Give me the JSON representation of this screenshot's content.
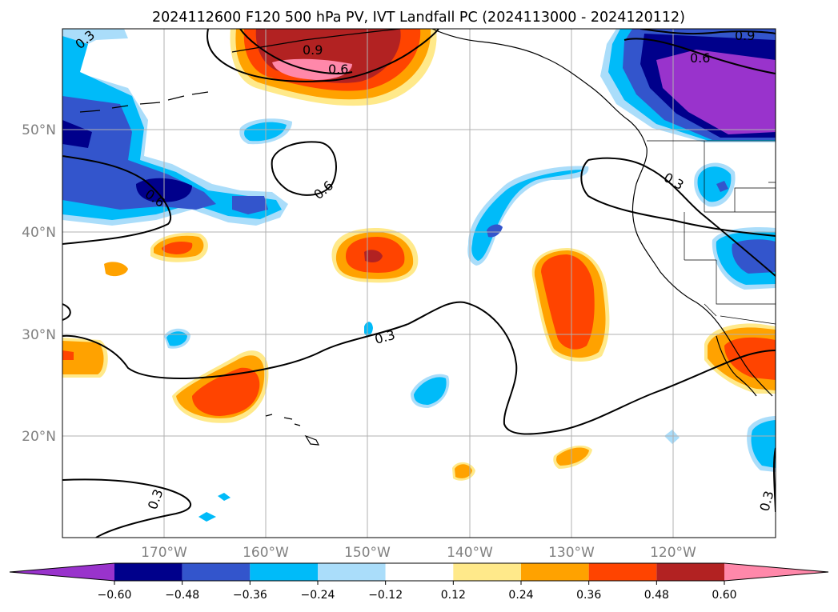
{
  "title": "2024112600 F120 500 hPa PV, IVT Landfall PC (2024113000 - 2024120112)",
  "map": {
    "lat_ticks": [
      "50°N",
      "40°N",
      "30°N",
      "20°N"
    ],
    "lon_ticks": [
      "170°W",
      "160°W",
      "150°W",
      "140°W",
      "130°W",
      "120°W"
    ],
    "grid": true
  },
  "contour_labels": [
    "0.3",
    "0.9",
    "0.6",
    "0.6",
    "0.9",
    "0.6",
    "0.3",
    "0.6",
    "0.3",
    "0.3",
    "0.3"
  ],
  "colorbar": {
    "levels": [
      "−0.60",
      "−0.48",
      "−0.36",
      "−0.24",
      "−0.12",
      "0.12",
      "0.24",
      "0.36",
      "0.48",
      "0.60"
    ],
    "colors": [
      "#9933cc",
      "#00008b",
      "#3355cc",
      "#00bbf9",
      "#aaddfa",
      "#ffffff",
      "#ffe98a",
      "#ffa200",
      "#ff4400",
      "#b22222",
      "#ff88aa"
    ]
  }
}
